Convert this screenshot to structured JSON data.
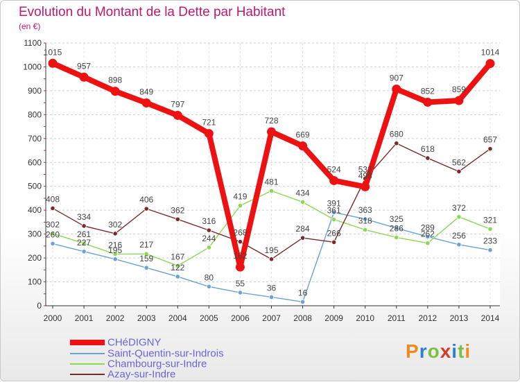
{
  "header": {
    "title": "Evolution du Montant de la Dette par Habitant",
    "unit": "(en €)"
  },
  "brand": {
    "text": "Proxiti",
    "colors": [
      "#f08a1c",
      "#2f7fd6",
      "#7ac043",
      "#d33a2c",
      "#2f7fd6",
      "#7ac043",
      "#f08a1c"
    ]
  },
  "chart_data": {
    "type": "line",
    "title": "Evolution du Montant de la Dette par Habitant",
    "ylabel": "(en €)",
    "xlabel": "",
    "x": [
      2000,
      2001,
      2002,
      2003,
      2004,
      2005,
      2006,
      2007,
      2008,
      2009,
      2010,
      2011,
      2012,
      2013,
      2014
    ],
    "ylim": [
      0,
      1100
    ],
    "yticks": [
      0,
      100,
      200,
      300,
      400,
      500,
      600,
      700,
      800,
      900,
      1000,
      1100
    ],
    "grid": "horizontal dashed",
    "legend_position": "bottom-left",
    "series": [
      {
        "name": "CHéDIGNY",
        "color": "#ee1111",
        "values": [
          1015,
          957,
          898,
          849,
          797,
          721,
          162,
          728,
          669,
          524,
          498,
          907,
          852,
          859,
          1014
        ]
      },
      {
        "name": "Saint-Quentin-sur-Indrois",
        "color": "#6aa2d8",
        "values": [
          260,
          227,
          195,
          159,
          122,
          80,
          55,
          36,
          16,
          391,
          363,
          325,
          289,
          256,
          233
        ]
      },
      {
        "name": "Chambourg-sur-Indre",
        "color": "#8ed655",
        "values": [
          302,
          261,
          216,
          217,
          167,
          244,
          419,
          481,
          434,
          361,
          318,
          286,
          262,
          372,
          321
        ]
      },
      {
        "name": "Azay-sur-Indre",
        "color": "#7a2a2a",
        "values": [
          408,
          334,
          302,
          406,
          362,
          316,
          268,
          195,
          284,
          266,
          532,
          680,
          618,
          562,
          657
        ]
      }
    ]
  }
}
